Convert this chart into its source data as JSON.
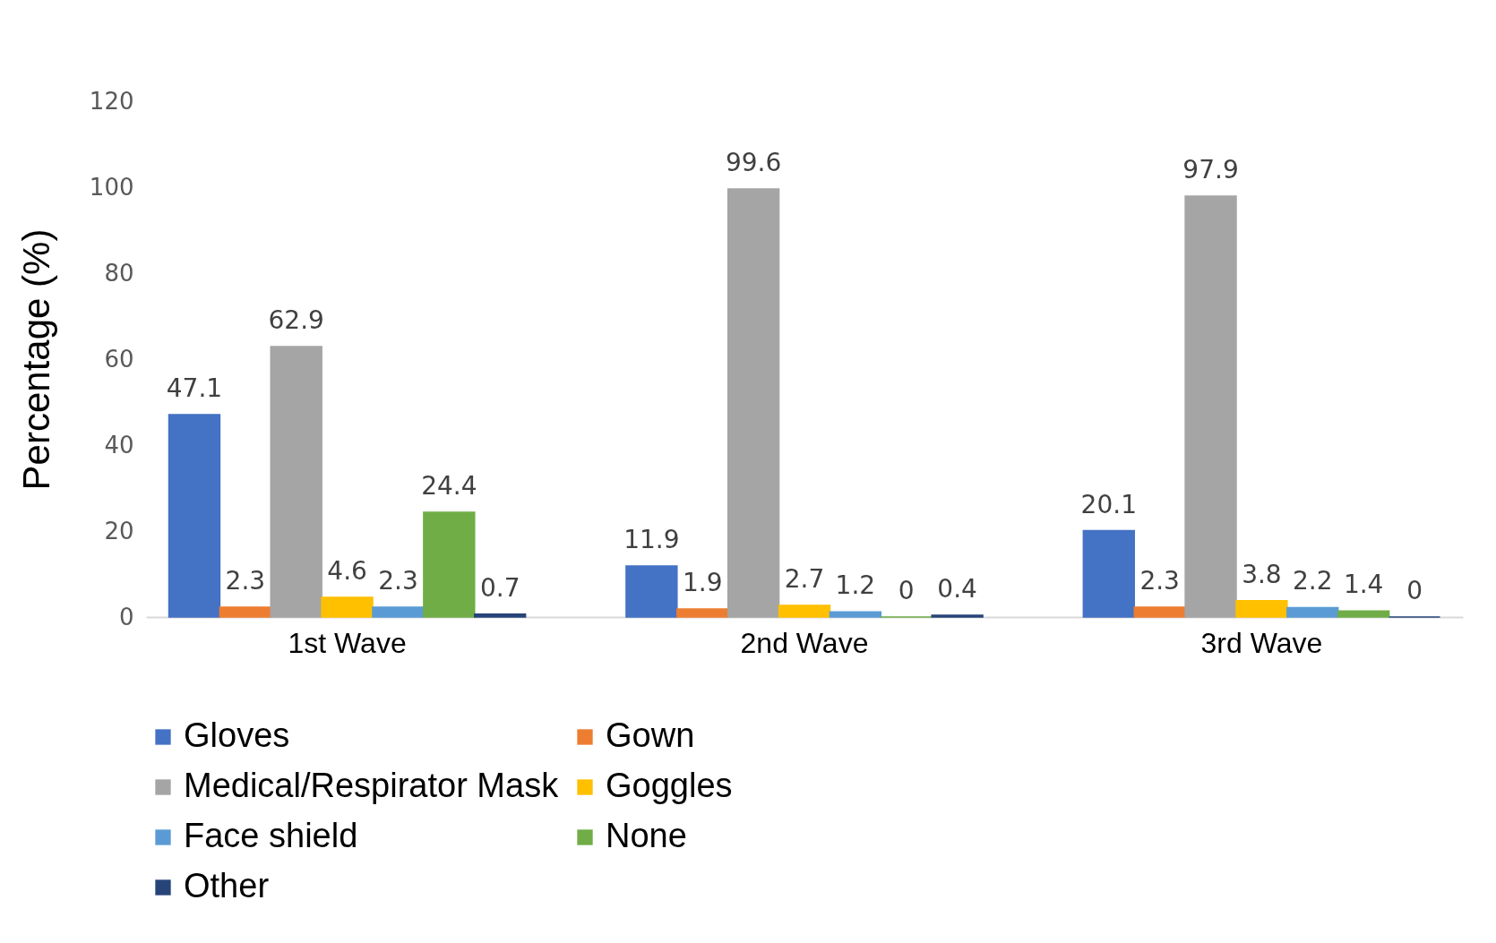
{
  "chart_data": {
    "type": "bar",
    "ylabel": "Percentage (%)",
    "categories": [
      "1st Wave",
      "2nd Wave",
      "3rd Wave"
    ],
    "series": [
      {
        "name": "Gloves",
        "color": "#4472c4",
        "values": [
          47.1,
          11.9,
          20.1
        ]
      },
      {
        "name": "Gown",
        "color": "#ed7d31",
        "values": [
          2.3,
          1.9,
          2.3
        ]
      },
      {
        "name": "Medical/Respirator Mask",
        "color": "#a5a5a5",
        "values": [
          62.9,
          99.6,
          97.9
        ]
      },
      {
        "name": "Goggles",
        "color": "#ffc000",
        "values": [
          4.6,
          2.7,
          3.8
        ]
      },
      {
        "name": "Face shield",
        "color": "#5b9bd5",
        "values": [
          2.3,
          1.2,
          2.2
        ]
      },
      {
        "name": "None",
        "color": "#70ad47",
        "values": [
          24.4,
          0,
          1.4
        ]
      },
      {
        "name": "Other",
        "color": "#264478",
        "values": [
          0.7,
          0.4,
          0
        ]
      }
    ],
    "ylim": [
      0,
      120
    ],
    "yticks": [
      0,
      20,
      40,
      60,
      80,
      100,
      120
    ],
    "grid": false,
    "legend": "bottom",
    "data_labels": true
  }
}
